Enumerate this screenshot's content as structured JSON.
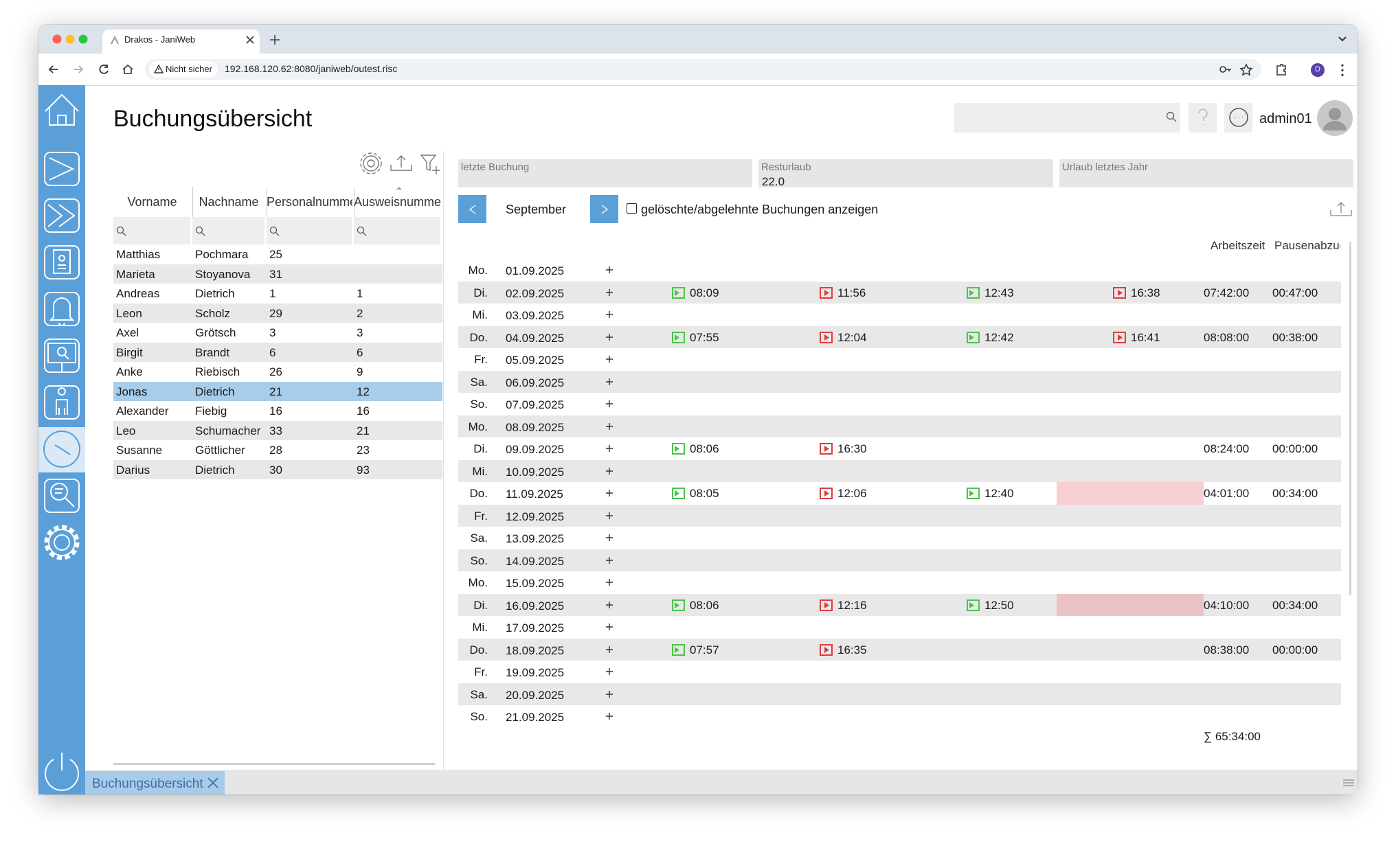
{
  "browser": {
    "tab_title": "Drakos - JaniWeb",
    "security": "Nicht sicher",
    "url": "192.168.120.62:8080/janiweb/outest.risc",
    "profile": "D"
  },
  "header": {
    "title": "Buchungsübersicht",
    "user": "admin01"
  },
  "employees": {
    "columns": [
      "Vorname",
      "Nachname",
      "Personalnummer",
      "Ausweisnummer"
    ],
    "rows": [
      [
        "Matthias",
        "Pochmara",
        "25"
      ],
      [
        "Marieta",
        "Stoyanova",
        "31"
      ],
      [
        "Andreas",
        "Dietrich",
        "1",
        "1"
      ],
      [
        "Leon",
        "Scholz",
        "29",
        "2"
      ],
      [
        "Axel",
        "Grötsch",
        "3",
        "3"
      ],
      [
        "Birgit",
        "Brandt",
        "6",
        "6"
      ],
      [
        "Anke",
        "Riebisch",
        "26",
        "9"
      ],
      [
        "Jonas",
        "Dietrich",
        "21",
        "12"
      ],
      [
        "Alexander",
        "Fiebig",
        "16",
        "16"
      ],
      [
        "Leo",
        "Schumacher",
        "33",
        "21"
      ],
      [
        "Susanne",
        "Göttlicher",
        "28",
        "23"
      ],
      [
        "Darius",
        "Dietrich",
        "30",
        "93"
      ]
    ],
    "selected_row": 7
  },
  "summary": [
    {
      "label": "letzte Buchung"
    },
    {
      "label": "Resturlaub",
      "value": "22.0"
    },
    {
      "label": "Urlaub letztes Jahr"
    }
  ],
  "month": "September",
  "show_deleted_label": "gelöschte/abgelehnte Buchungen anzeigen",
  "bookings": {
    "columns": [
      "Arbeitszeit",
      "Pausenabzug"
    ],
    "rows": [
      {
        "day": "Mo.",
        "date": "01.09.2025"
      },
      {
        "day": "Di.",
        "date": "02.09.2025",
        "times": [
          "08:09",
          "11:56",
          "12:43",
          "16:38"
        ],
        "work": "07:42:00",
        "pause": "00:47:00"
      },
      {
        "day": "Mi.",
        "date": "03.09.2025"
      },
      {
        "day": "Do.",
        "date": "04.09.2025",
        "times": [
          "07:55",
          "12:04",
          "12:42",
          "16:41"
        ],
        "work": "08:08:00",
        "pause": "00:38:00"
      },
      {
        "day": "Fr.",
        "date": "05.09.2025"
      },
      {
        "day": "Sa.",
        "date": "06.09.2025"
      },
      {
        "day": "So.",
        "date": "07.09.2025"
      },
      {
        "day": "Mo.",
        "date": "08.09.2025"
      },
      {
        "day": "Di.",
        "date": "09.09.2025",
        "times": [
          "08:06",
          "16:30"
        ],
        "work": "08:24:00",
        "pause": "00:00:00"
      },
      {
        "day": "Mi.",
        "date": "10.09.2025"
      },
      {
        "day": "Do.",
        "date": "11.09.2025",
        "times": [
          "08:05",
          "12:06",
          "12:40"
        ],
        "work": "04:01:00",
        "pause": "00:34:00"
      },
      {
        "day": "Fr.",
        "date": "12.09.2025"
      },
      {
        "day": "Sa.",
        "date": "13.09.2025"
      },
      {
        "day": "So.",
        "date": "14.09.2025"
      },
      {
        "day": "Mo.",
        "date": "15.09.2025"
      },
      {
        "day": "Di.",
        "date": "16.09.2025",
        "times": [
          "08:06",
          "12:16",
          "12:50"
        ],
        "work": "04:10:00",
        "pause": "00:34:00"
      },
      {
        "day": "Mi.",
        "date": "17.09.2025"
      },
      {
        "day": "Do.",
        "date": "18.09.2025",
        "times": [
          "07:57",
          "16:35"
        ],
        "work": "08:38:00",
        "pause": "00:00:00"
      },
      {
        "day": "Fr.",
        "date": "19.09.2025"
      },
      {
        "day": "Sa.",
        "date": "20.09.2025"
      },
      {
        "day": "So.",
        "date": "21.09.2025"
      }
    ],
    "total": "∑ 65:34:00"
  },
  "tabs": [
    {
      "label": "Buchungsübersicht"
    }
  ]
}
